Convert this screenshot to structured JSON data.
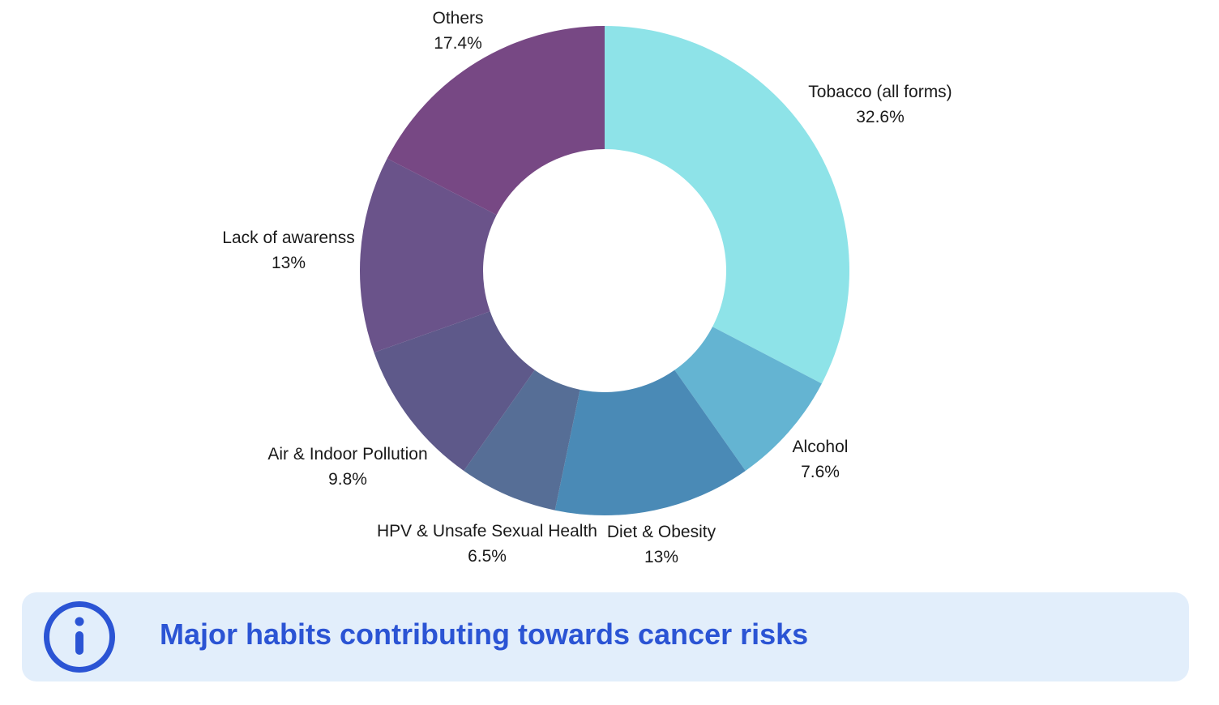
{
  "chart_data": {
    "type": "pie",
    "subtype": "donut",
    "categories": [
      "Tobacco (all forms)",
      "Alcohol",
      "Diet & Obesity",
      "HPV & Unsafe Sexual Health",
      "Air & Indoor Pollution",
      "Lack of awarenss",
      "Others"
    ],
    "values": [
      32.6,
      7.6,
      13,
      6.5,
      9.8,
      13,
      17.4
    ],
    "value_labels": [
      "32.6%",
      "7.6%",
      "13%",
      "6.5%",
      "9.8%",
      "13%",
      "17.4%"
    ],
    "colors": [
      "#8ee3e8",
      "#64b4d2",
      "#4a8ab6",
      "#566e96",
      "#5e598a",
      "#6a538a",
      "#774884"
    ],
    "legend": "none",
    "title": ""
  },
  "banner": {
    "icon": "info-icon",
    "title": "Major habits contributing towards cancer risks",
    "background": "#e2eefb",
    "accent": "#2b54d4"
  }
}
